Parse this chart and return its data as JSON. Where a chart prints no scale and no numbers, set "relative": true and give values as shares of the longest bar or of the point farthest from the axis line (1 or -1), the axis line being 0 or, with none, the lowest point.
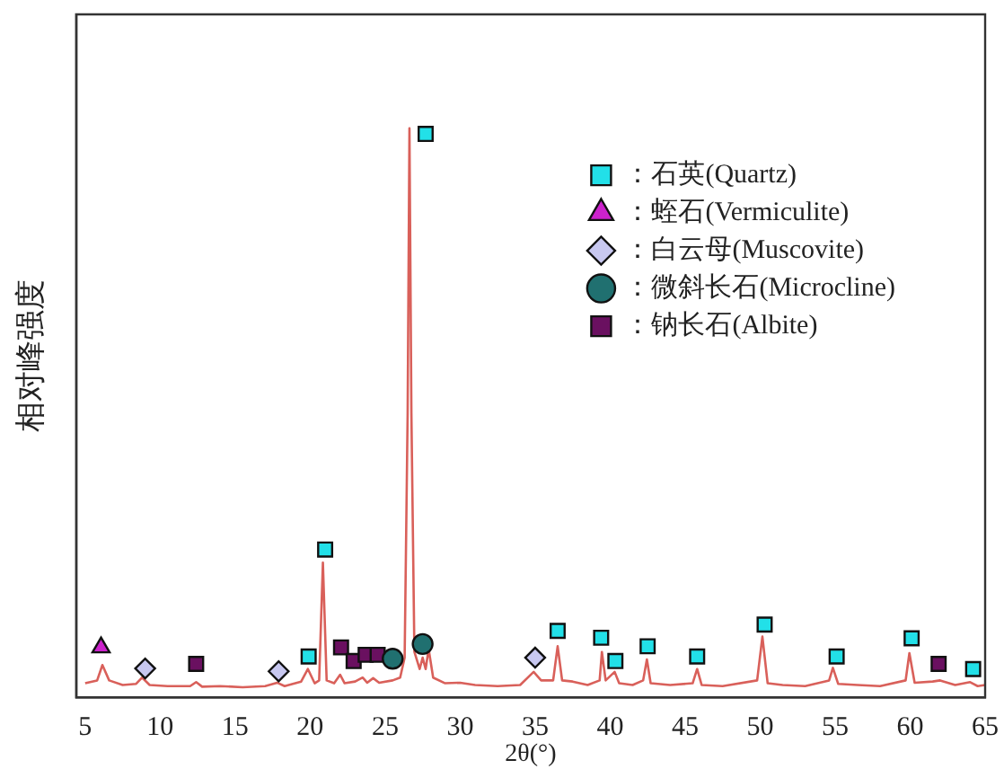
{
  "chart_data": {
    "type": "line",
    "relative": true,
    "xlabel": "2θ(°)",
    "ylabel": "相对峰强度",
    "xlim": [
      4.4,
      65
    ],
    "xticks": [
      5,
      10,
      15,
      20,
      25,
      30,
      35,
      40,
      45,
      50,
      55,
      60,
      65
    ],
    "grid": false,
    "legend": "top right",
    "series": [
      {
        "color": "#d9605a",
        "marker": "none",
        "x": [
          5.0,
          5.8,
          6.15,
          6.6,
          7.5,
          8.4,
          8.8,
          9.3,
          10.5,
          12.0,
          12.4,
          12.8,
          14.0,
          15.5,
          17.0,
          17.8,
          18.3,
          19.4,
          19.85,
          20.3,
          20.6,
          20.85,
          21.1,
          21.6,
          22.0,
          22.3,
          23.0,
          23.5,
          23.8,
          24.2,
          24.6,
          25.5,
          26.0,
          26.3,
          26.5,
          26.62,
          26.75,
          26.95,
          27.3,
          27.5,
          27.7,
          27.9,
          28.2,
          29.0,
          30.0,
          31.0,
          32.5,
          34.0,
          34.9,
          35.4,
          36.2,
          36.5,
          36.8,
          37.5,
          38.5,
          39.3,
          39.45,
          39.7,
          40.3,
          40.6,
          41.5,
          42.2,
          42.45,
          42.7,
          44.0,
          45.5,
          45.8,
          46.1,
          47.5,
          49.8,
          50.15,
          50.5,
          51.5,
          53.0,
          54.6,
          54.85,
          55.2,
          56.5,
          58.0,
          59.7,
          59.95,
          60.3,
          61.5,
          62.0,
          63.0,
          64.0,
          64.5,
          65.0
        ],
        "values": [
          0.025,
          0.03,
          0.057,
          0.03,
          0.022,
          0.024,
          0.035,
          0.022,
          0.02,
          0.02,
          0.027,
          0.019,
          0.02,
          0.018,
          0.02,
          0.026,
          0.02,
          0.028,
          0.05,
          0.025,
          0.03,
          0.237,
          0.03,
          0.025,
          0.04,
          0.025,
          0.028,
          0.035,
          0.026,
          0.034,
          0.026,
          0.03,
          0.035,
          0.07,
          0.5,
          1,
          0.5,
          0.08,
          0.05,
          0.07,
          0.05,
          0.085,
          0.035,
          0.025,
          0.026,
          0.022,
          0.02,
          0.022,
          0.045,
          0.03,
          0.03,
          0.09,
          0.03,
          0.028,
          0.022,
          0.03,
          0.08,
          0.03,
          0.045,
          0.025,
          0.022,
          0.03,
          0.067,
          0.025,
          0.022,
          0.025,
          0.05,
          0.022,
          0.02,
          0.03,
          0.107,
          0.025,
          0.022,
          0.02,
          0.03,
          0.052,
          0.024,
          0.022,
          0.02,
          0.03,
          0.078,
          0.026,
          0.028,
          0.03,
          0.022,
          0.027,
          0.02,
          0.022
        ]
      },
      {
        "type": "scatter",
        "name": "：石英(Quartz)",
        "color": "#22e0e8",
        "marker": "square",
        "x": [
          19.9,
          21.0,
          27.7,
          36.5,
          39.4,
          40.35,
          42.5,
          45.8,
          50.3,
          55.1,
          60.1,
          64.2
        ],
        "values": [
          0.072,
          0.26,
          0.99,
          0.117,
          0.105,
          0.064,
          0.09,
          0.072,
          0.128,
          0.072,
          0.104,
          0.05
        ]
      },
      {
        "type": "scatter",
        "name": "：蛭石(Vermiculite)",
        "color": "#cc22cc",
        "marker": "triangle",
        "x": [
          6.06
        ],
        "values": [
          0.088
        ]
      },
      {
        "type": "scatter",
        "name": "：白云母(Muscovite)",
        "color": "#c8c8f0",
        "marker": "diamond",
        "x": [
          9.0,
          17.9,
          35.0
        ],
        "values": [
          0.051,
          0.046,
          0.07
        ]
      },
      {
        "type": "scatter",
        "name": "：微斜长石(Microcline)",
        "color": "#207070",
        "marker": "circle",
        "x": [
          25.5,
          27.5
        ],
        "values": [
          0.068,
          0.094
        ]
      },
      {
        "type": "scatter",
        "name": "：钠长石(Albite)",
        "color": "#6a1060",
        "marker": "square",
        "x": [
          12.4,
          22.06,
          22.9,
          23.7,
          24.5,
          61.9
        ],
        "values": [
          0.059,
          0.088,
          0.064,
          0.075,
          0.075,
          0.059
        ]
      }
    ]
  }
}
